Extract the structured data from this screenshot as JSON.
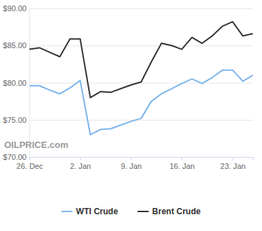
{
  "chart_data": {
    "type": "line",
    "annotations": [
      "OILPRICE.com"
    ],
    "categories": [
      "26. Dec",
      null,
      null,
      null,
      null,
      "2. Jan",
      null,
      null,
      null,
      null,
      "9. Jan",
      null,
      null,
      null,
      null,
      "16. Jan",
      null,
      null,
      null,
      null,
      "23. Jan",
      null,
      null
    ],
    "series": [
      {
        "name": "WTI Crude",
        "color": "#7cb5ec",
        "values": [
          79.6,
          79.6,
          79.0,
          78.5,
          79.3,
          80.3,
          73.0,
          73.7,
          73.8,
          74.3,
          74.8,
          75.2,
          77.5,
          78.5,
          79.2,
          79.9,
          80.5,
          79.9,
          80.7,
          81.7,
          81.7,
          80.2,
          81.0
        ]
      },
      {
        "name": "Brent Crude",
        "color": "#333333",
        "values": [
          84.5,
          84.7,
          84.1,
          83.5,
          85.9,
          85.9,
          78.0,
          78.8,
          78.7,
          79.2,
          79.7,
          80.1,
          82.8,
          85.3,
          85.0,
          84.5,
          86.1,
          85.3,
          86.3,
          87.6,
          88.2,
          86.3,
          86.6
        ]
      }
    ],
    "ylim": [
      70,
      90
    ],
    "yticks": [
      {
        "value": 70,
        "label": "$70.00"
      },
      {
        "value": 75,
        "label": "$75.00"
      },
      {
        "value": 80,
        "label": "$80.00"
      },
      {
        "value": 85,
        "label": "$85.00"
      },
      {
        "value": 90,
        "label": "$90.00"
      }
    ],
    "grid": true,
    "legend": "bottom"
  }
}
